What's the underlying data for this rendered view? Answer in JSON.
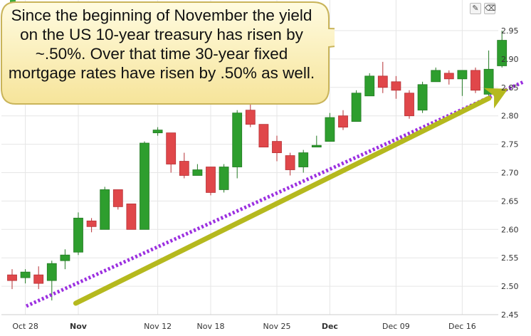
{
  "colors": {
    "up": "#2e9e2e",
    "up_stroke": "#237a23",
    "down": "#e0474a",
    "down_stroke": "#b63035",
    "grid": "#e6e6e6",
    "trend_dotted": "#9b2fe0",
    "trend_arrow": "#b5b91e",
    "callout_fill": "#fdf1b8",
    "callout_stroke": "#c9b45a"
  },
  "callout": {
    "text": "Since the beginning of November the yield on the US 10-year treasury has risen by ~.50%.  Over that time 30-year fixed mortgage rates have risen by .50% as well."
  },
  "toolbar": {
    "draw_icon": "pencil-icon",
    "erase_icon": "eraser-icon",
    "draw_glyph": "✎",
    "erase_glyph": "⌫"
  },
  "chart_data": {
    "type": "candlestick",
    "title": "",
    "xlabel": "",
    "ylabel": "",
    "ylim": [
      2.45,
      2.96
    ],
    "y_ticks": [
      "2.45",
      "2.50",
      "2.55",
      "2.60",
      "2.65",
      "2.70",
      "2.75",
      "2.80",
      "2.85",
      "2.90",
      "2.95"
    ],
    "x_tick_labels": [
      {
        "label": "Oct 28",
        "index": 1,
        "bold": false
      },
      {
        "label": "Nov",
        "index": 5,
        "bold": true
      },
      {
        "label": "Nov 12",
        "index": 11,
        "bold": false
      },
      {
        "label": "Nov 18",
        "index": 15,
        "bold": false
      },
      {
        "label": "Nov 25",
        "index": 20,
        "bold": false
      },
      {
        "label": "Dec",
        "index": 24,
        "bold": true
      },
      {
        "label": "Dec 09",
        "index": 29,
        "bold": false
      },
      {
        "label": "Dec 16",
        "index": 34,
        "bold": false
      }
    ],
    "candles": [
      {
        "o": 2.52,
        "h": 2.53,
        "l": 2.495,
        "c": 2.51
      },
      {
        "o": 2.515,
        "h": 2.53,
        "l": 2.505,
        "c": 2.525
      },
      {
        "o": 2.52,
        "h": 2.535,
        "l": 2.495,
        "c": 2.505
      },
      {
        "o": 2.51,
        "h": 2.545,
        "l": 2.475,
        "c": 2.54
      },
      {
        "o": 2.545,
        "h": 2.565,
        "l": 2.53,
        "c": 2.555
      },
      {
        "o": 2.56,
        "h": 2.63,
        "l": 2.555,
        "c": 2.62
      },
      {
        "o": 2.615,
        "h": 2.62,
        "l": 2.595,
        "c": 2.605
      },
      {
        "o": 2.6,
        "h": 2.675,
        "l": 2.6,
        "c": 2.67
      },
      {
        "o": 2.67,
        "h": 2.67,
        "l": 2.635,
        "c": 2.64
      },
      {
        "o": 2.645,
        "h": 2.645,
        "l": 2.6,
        "c": 2.6
      },
      {
        "o": 2.6,
        "h": 2.755,
        "l": 2.6,
        "c": 2.752
      },
      {
        "o": 2.77,
        "h": 2.78,
        "l": 2.765,
        "c": 2.775
      },
      {
        "o": 2.77,
        "h": 2.77,
        "l": 2.7,
        "c": 2.715
      },
      {
        "o": 2.72,
        "h": 2.735,
        "l": 2.69,
        "c": 2.695
      },
      {
        "o": 2.695,
        "h": 2.715,
        "l": 2.695,
        "c": 2.705
      },
      {
        "o": 2.71,
        "h": 2.71,
        "l": 2.66,
        "c": 2.665
      },
      {
        "o": 2.67,
        "h": 2.715,
        "l": 2.665,
        "c": 2.71
      },
      {
        "o": 2.71,
        "h": 2.81,
        "l": 2.69,
        "c": 2.805
      },
      {
        "o": 2.81,
        "h": 2.82,
        "l": 2.78,
        "c": 2.785
      },
      {
        "o": 2.785,
        "h": 2.785,
        "l": 2.745,
        "c": 2.745
      },
      {
        "o": 2.755,
        "h": 2.765,
        "l": 2.72,
        "c": 2.735
      },
      {
        "o": 2.73,
        "h": 2.735,
        "l": 2.695,
        "c": 2.705
      },
      {
        "o": 2.71,
        "h": 2.74,
        "l": 2.7,
        "c": 2.735
      },
      {
        "o": 2.745,
        "h": 2.765,
        "l": 2.745,
        "c": 2.748
      },
      {
        "o": 2.755,
        "h": 2.805,
        "l": 2.755,
        "c": 2.797
      },
      {
        "o": 2.8,
        "h": 2.81,
        "l": 2.775,
        "c": 2.78
      },
      {
        "o": 2.79,
        "h": 2.845,
        "l": 2.79,
        "c": 2.84
      },
      {
        "o": 2.835,
        "h": 2.875,
        "l": 2.835,
        "c": 2.87
      },
      {
        "o": 2.87,
        "h": 2.895,
        "l": 2.84,
        "c": 2.85
      },
      {
        "o": 2.86,
        "h": 2.87,
        "l": 2.83,
        "c": 2.845
      },
      {
        "o": 2.84,
        "h": 2.845,
        "l": 2.795,
        "c": 2.8
      },
      {
        "o": 2.81,
        "h": 2.86,
        "l": 2.805,
        "c": 2.855
      },
      {
        "o": 2.86,
        "h": 2.885,
        "l": 2.86,
        "c": 2.88
      },
      {
        "o": 2.875,
        "h": 2.88,
        "l": 2.855,
        "c": 2.865
      },
      {
        "o": 2.865,
        "h": 2.88,
        "l": 2.835,
        "c": 2.88
      },
      {
        "o": 2.88,
        "h": 2.885,
        "l": 2.84,
        "c": 2.845
      },
      {
        "o": 2.838,
        "h": 2.915,
        "l": 2.835,
        "c": 2.882
      },
      {
        "o": 2.888,
        "h": 2.95,
        "l": 2.885,
        "c": 2.933
      }
    ],
    "annotations": {
      "dotted_trendline": {
        "from": {
          "index": 0,
          "y": 2.465
        },
        "to": {
          "index": 38,
          "y": 2.86
        }
      },
      "arrow_trend": {
        "from": {
          "index": 4,
          "y": 2.45
        },
        "to": {
          "index": 38,
          "y": 2.805
        }
      }
    },
    "grid": true
  }
}
